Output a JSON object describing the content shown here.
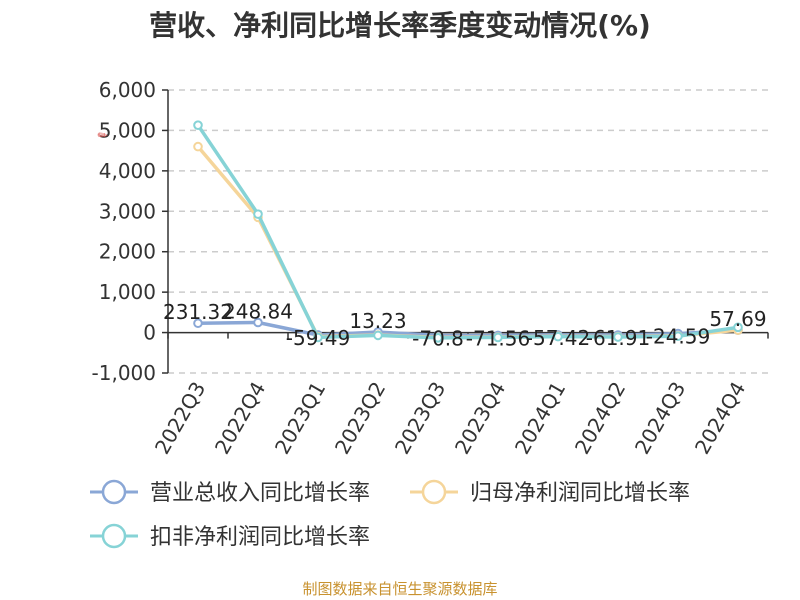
{
  "chart_data": {
    "type": "line",
    "title": "营收、净利同比增长率季度变动情况(%)",
    "categories": [
      "2022Q3",
      "2022Q4",
      "2023Q1",
      "2023Q2",
      "2023Q3",
      "2023Q4",
      "2024Q1",
      "2024Q2",
      "2024Q3",
      "2024Q4"
    ],
    "ylim": [
      -1000,
      6000
    ],
    "yticks": [
      "6,000",
      "5,000",
      "4,000",
      "3,000",
      "2,000",
      "1,000",
      "0",
      "-1,000"
    ],
    "ytick_values": [
      6000,
      5000,
      4000,
      3000,
      2000,
      1000,
      0,
      -1000
    ],
    "grid": true,
    "legend_position": "bottom",
    "series": [
      {
        "name": "营业总收入同比增长率",
        "color": "#8aa7d6",
        "values": [
          231.32,
          248.84,
          -59.49,
          13.23,
          -70.8,
          -71.56,
          -57.42,
          -61.91,
          -24.59,
          57.69
        ],
        "labels": [
          "231.32",
          "248.84",
          "-59.49",
          "13.23",
          "-70.8",
          "-71.56",
          "-57.42",
          "-61.91",
          "-24.59",
          "57.69"
        ]
      },
      {
        "name": "归母净利润同比增长率",
        "color": "#f5d59a",
        "values": [
          4600,
          2850,
          -100,
          -60,
          -120,
          -110,
          -90,
          -100,
          -80,
          60
        ]
      },
      {
        "name": "扣非净利润同比增长率",
        "color": "#86d3d6",
        "values": [
          5130,
          2930,
          -120,
          -70,
          -130,
          -120,
          -100,
          -110,
          -90,
          130
        ]
      }
    ]
  },
  "source_note": "制图数据来自恒生聚源数据库"
}
